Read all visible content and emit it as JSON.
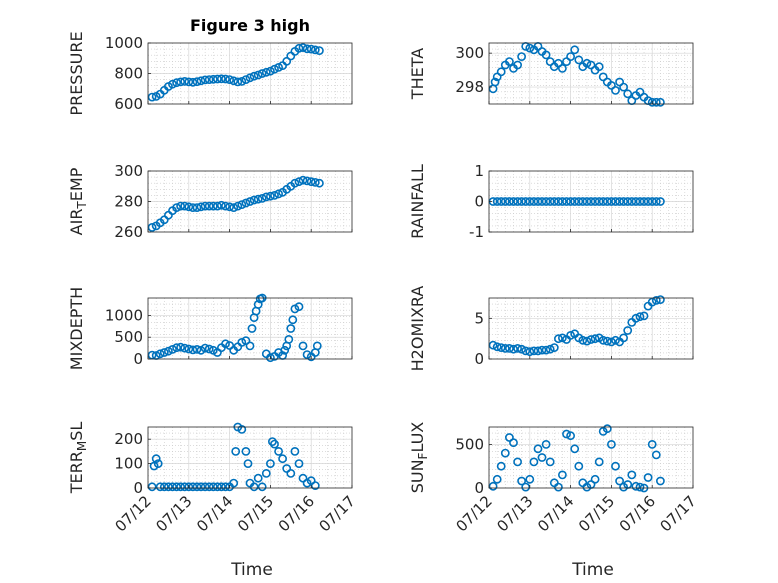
{
  "chart_data": {
    "title": "Figure 3 high",
    "marker_color": "#0072BD",
    "x_tick_labels": [
      "07/12",
      "07/13",
      "07/14",
      "07/15",
      "07/16",
      "07/17"
    ],
    "xlabel": "Time",
    "panels": [
      {
        "id": "pressure",
        "ylabel": "PRESSURE",
        "ylim": [
          600,
          1000
        ],
        "yticks": [
          600,
          800,
          1000
        ],
        "x": [
          0.1,
          0.2,
          0.3,
          0.4,
          0.5,
          0.6,
          0.7,
          0.8,
          0.9,
          1.0,
          1.1,
          1.2,
          1.3,
          1.4,
          1.5,
          1.6,
          1.7,
          1.8,
          1.9,
          2.0,
          2.1,
          2.2,
          2.3,
          2.4,
          2.5,
          2.6,
          2.7,
          2.8,
          2.9,
          3.0,
          3.1,
          3.2,
          3.3,
          3.4,
          3.5,
          3.6,
          3.7,
          3.8,
          3.9,
          4.0,
          4.1,
          4.2
        ],
        "y": [
          645,
          650,
          665,
          690,
          715,
          730,
          740,
          745,
          748,
          745,
          742,
          746,
          752,
          758,
          760,
          762,
          764,
          765,
          764,
          760,
          752,
          745,
          748,
          760,
          772,
          782,
          790,
          800,
          808,
          815,
          828,
          840,
          852,
          880,
          915,
          945,
          965,
          970,
          962,
          960,
          955,
          950
        ]
      },
      {
        "id": "theta",
        "ylabel": "THETA",
        "ylim": [
          297,
          300.6
        ],
        "yticks": [
          298,
          300
        ],
        "x": [
          0.1,
          0.15,
          0.2,
          0.3,
          0.4,
          0.5,
          0.6,
          0.7,
          0.8,
          0.9,
          1.0,
          1.1,
          1.2,
          1.3,
          1.4,
          1.5,
          1.6,
          1.7,
          1.8,
          1.9,
          2.0,
          2.1,
          2.2,
          2.3,
          2.4,
          2.5,
          2.6,
          2.7,
          2.8,
          2.9,
          3.0,
          3.1,
          3.2,
          3.3,
          3.4,
          3.5,
          3.6,
          3.7,
          3.8,
          3.9,
          4.0,
          4.1,
          4.2
        ],
        "y": [
          297.9,
          298.3,
          298.6,
          298.9,
          299.3,
          299.5,
          299.1,
          299.3,
          299.8,
          300.4,
          300.3,
          300.2,
          300.4,
          300.1,
          299.9,
          299.5,
          299.2,
          299.4,
          299.1,
          299.5,
          299.8,
          300.2,
          299.6,
          299.2,
          299.4,
          299.3,
          299.0,
          299.2,
          298.6,
          298.3,
          298.1,
          297.8,
          298.3,
          298.0,
          297.6,
          297.2,
          297.5,
          297.7,
          297.4,
          297.2,
          297.1,
          297.1,
          297.1
        ]
      },
      {
        "id": "air_temp",
        "ylabel": "AIR_TEMP",
        "ylim": [
          260,
          300
        ],
        "yticks": [
          260,
          280,
          300
        ],
        "x": [
          0.1,
          0.2,
          0.3,
          0.4,
          0.5,
          0.6,
          0.7,
          0.8,
          0.9,
          1.0,
          1.1,
          1.2,
          1.3,
          1.4,
          1.5,
          1.6,
          1.7,
          1.8,
          1.9,
          2.0,
          2.1,
          2.2,
          2.3,
          2.4,
          2.5,
          2.6,
          2.7,
          2.8,
          2.9,
          3.0,
          3.1,
          3.2,
          3.3,
          3.4,
          3.5,
          3.6,
          3.7,
          3.8,
          3.9,
          4.0,
          4.1,
          4.2
        ],
        "y": [
          263,
          264,
          266,
          268,
          271,
          274,
          276,
          277,
          277,
          276.5,
          276,
          276,
          276.5,
          277,
          277,
          277,
          277,
          277.5,
          277,
          276.5,
          276,
          277,
          278,
          279,
          280,
          281,
          281.5,
          282,
          283,
          283.5,
          284,
          285,
          286,
          288,
          290,
          292,
          293,
          294,
          293.5,
          293,
          292.5,
          292
        ]
      },
      {
        "id": "rainfall",
        "ylabel": "RAINFALL",
        "ylim": [
          -1,
          1
        ],
        "yticks": [
          -1,
          0,
          1
        ],
        "x": [
          0.1,
          0.2,
          0.3,
          0.4,
          0.5,
          0.6,
          0.7,
          0.8,
          0.9,
          1.0,
          1.1,
          1.2,
          1.3,
          1.4,
          1.5,
          1.6,
          1.7,
          1.8,
          1.9,
          2.0,
          2.1,
          2.2,
          2.3,
          2.4,
          2.5,
          2.6,
          2.7,
          2.8,
          2.9,
          3.0,
          3.1,
          3.2,
          3.3,
          3.4,
          3.5,
          3.6,
          3.7,
          3.8,
          3.9,
          4.0,
          4.1,
          4.2
        ],
        "y": [
          0,
          0,
          0,
          0,
          0,
          0,
          0,
          0,
          0,
          0,
          0,
          0,
          0,
          0,
          0,
          0,
          0,
          0,
          0,
          0,
          0,
          0,
          0,
          0,
          0,
          0,
          0,
          0,
          0,
          0,
          0,
          0,
          0,
          0,
          0,
          0,
          0,
          0,
          0,
          0,
          0,
          0
        ]
      },
      {
        "id": "mixdepth",
        "ylabel": "MIXDEPTH",
        "ylim": [
          0,
          1400
        ],
        "yticks": [
          0,
          500,
          1000
        ],
        "x": [
          0.1,
          0.2,
          0.3,
          0.4,
          0.5,
          0.6,
          0.7,
          0.8,
          0.9,
          1.0,
          1.1,
          1.2,
          1.3,
          1.4,
          1.5,
          1.6,
          1.7,
          1.8,
          1.9,
          2.0,
          2.1,
          2.2,
          2.3,
          2.4,
          2.5,
          2.55,
          2.6,
          2.65,
          2.7,
          2.75,
          2.8,
          2.9,
          3.0,
          3.1,
          3.2,
          3.3,
          3.35,
          3.4,
          3.45,
          3.5,
          3.55,
          3.6,
          3.7,
          3.8,
          3.9,
          4.0,
          4.1,
          4.15
        ],
        "y": [
          90,
          80,
          120,
          150,
          180,
          220,
          260,
          270,
          250,
          230,
          210,
          220,
          200,
          250,
          230,
          200,
          150,
          260,
          350,
          310,
          200,
          280,
          380,
          420,
          300,
          700,
          950,
          1100,
          1250,
          1380,
          1400,
          120,
          30,
          60,
          150,
          80,
          200,
          300,
          450,
          700,
          900,
          1150,
          1200,
          300,
          100,
          50,
          150,
          300
        ]
      },
      {
        "id": "h2omixra",
        "ylabel": "H2OMIXRA",
        "ylim": [
          0,
          7.5
        ],
        "yticks": [
          0,
          5
        ],
        "x": [
          0.1,
          0.2,
          0.3,
          0.4,
          0.5,
          0.6,
          0.7,
          0.8,
          0.9,
          1.0,
          1.1,
          1.2,
          1.3,
          1.4,
          1.5,
          1.6,
          1.7,
          1.8,
          1.9,
          2.0,
          2.1,
          2.2,
          2.3,
          2.4,
          2.5,
          2.6,
          2.7,
          2.8,
          2.9,
          3.0,
          3.1,
          3.2,
          3.3,
          3.4,
          3.5,
          3.6,
          3.7,
          3.8,
          3.9,
          4.0,
          4.1,
          4.2
        ],
        "y": [
          1.7,
          1.5,
          1.4,
          1.3,
          1.3,
          1.2,
          1.3,
          1.2,
          1.0,
          0.9,
          1.0,
          1.0,
          1.1,
          1.1,
          1.2,
          1.4,
          2.5,
          2.6,
          2.4,
          2.9,
          3.1,
          2.6,
          2.3,
          2.2,
          2.4,
          2.5,
          2.6,
          2.3,
          2.2,
          2.1,
          2.3,
          2.1,
          2.6,
          3.5,
          4.5,
          5.0,
          5.2,
          5.3,
          6.5,
          7.0,
          7.2,
          7.3
        ]
      },
      {
        "id": "terr_msl",
        "ylabel": "TERR_MSL",
        "ylim": [
          0,
          250
        ],
        "yticks": [
          0,
          100,
          200
        ],
        "x": [
          0.1,
          0.15,
          0.2,
          0.25,
          0.3,
          0.4,
          0.5,
          0.6,
          0.7,
          0.8,
          0.9,
          1.0,
          1.1,
          1.2,
          1.3,
          1.4,
          1.5,
          1.6,
          1.7,
          1.8,
          1.9,
          2.0,
          2.1,
          2.15,
          2.2,
          2.3,
          2.4,
          2.45,
          2.5,
          2.6,
          2.7,
          2.8,
          2.9,
          3.0,
          3.05,
          3.1,
          3.2,
          3.3,
          3.4,
          3.5,
          3.6,
          3.7,
          3.8,
          3.9,
          4.0,
          4.1
        ],
        "y": [
          5,
          90,
          120,
          100,
          5,
          5,
          5,
          5,
          5,
          5,
          5,
          5,
          5,
          5,
          5,
          5,
          5,
          5,
          5,
          5,
          5,
          5,
          20,
          150,
          250,
          240,
          150,
          100,
          20,
          5,
          40,
          5,
          60,
          100,
          190,
          180,
          150,
          120,
          80,
          60,
          150,
          100,
          40,
          20,
          30,
          10
        ]
      },
      {
        "id": "sun_flux",
        "ylabel": "SUN_FLUX",
        "ylim": [
          0,
          700
        ],
        "yticks": [
          0,
          500
        ],
        "x": [
          0.1,
          0.2,
          0.3,
          0.4,
          0.5,
          0.6,
          0.7,
          0.8,
          0.9,
          1.0,
          1.1,
          1.2,
          1.3,
          1.4,
          1.5,
          1.6,
          1.7,
          1.8,
          1.9,
          2.0,
          2.1,
          2.2,
          2.3,
          2.4,
          2.5,
          2.6,
          2.7,
          2.8,
          2.9,
          3.0,
          3.1,
          3.2,
          3.3,
          3.4,
          3.5,
          3.6,
          3.7,
          3.8,
          3.9,
          4.0,
          4.1,
          4.2
        ],
        "y": [
          20,
          100,
          250,
          400,
          580,
          520,
          300,
          80,
          10,
          100,
          300,
          450,
          350,
          500,
          300,
          60,
          10,
          150,
          620,
          600,
          450,
          250,
          60,
          10,
          40,
          100,
          300,
          650,
          680,
          500,
          250,
          80,
          10,
          40,
          150,
          20,
          10,
          0,
          120,
          500,
          380,
          80
        ]
      }
    ]
  }
}
